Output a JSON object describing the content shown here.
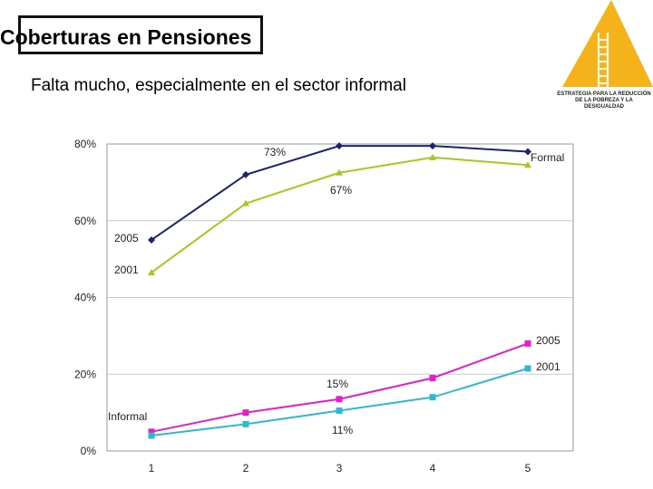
{
  "header": {
    "title": "Coberturas en Pensiones",
    "subtitle": "Falta mucho, especialmente en el sector informal"
  },
  "logo": {
    "icon": "ladder-pyramid-icon",
    "line1": "ESTRATEGIA PARA LA REDUCCIÓN",
    "line2": "DE LA POBREZA Y LA DESIGUALDAD",
    "color": "#f4b21b"
  },
  "chart_data": {
    "type": "line",
    "categories": [
      "1",
      "2",
      "3",
      "4",
      "5"
    ],
    "ylim": [
      0,
      80
    ],
    "yticks": [
      "0%",
      "20%",
      "40%",
      "60%",
      "80%"
    ],
    "grid": true,
    "series": [
      {
        "group": "Formal",
        "name": "2005",
        "marker": "diamond",
        "color": "#1a2472",
        "values": [
          55,
          72,
          79.5,
          79.5,
          78
        ]
      },
      {
        "group": "Formal",
        "name": "2001",
        "marker": "triangle",
        "color": "#a6c81e",
        "values": [
          46.5,
          64.5,
          72.5,
          76.5,
          74.5
        ]
      },
      {
        "group": "Informal",
        "name": "2005",
        "marker": "square",
        "color": "#e020c8",
        "values": [
          5,
          10,
          13.5,
          19,
          28
        ]
      },
      {
        "group": "Informal",
        "name": "2001",
        "marker": "square",
        "color": "#30b8d0",
        "values": [
          4,
          7,
          10.5,
          14,
          21.5
        ]
      }
    ],
    "annotations": {
      "formal_label": "Formal",
      "informal_label": "Informal",
      "formal_2005_label": "2005",
      "formal_2001_label": "2001",
      "informal_2005_label": "2005",
      "informal_2001_label": "2001",
      "peak_73": "73%",
      "peak_67": "67%",
      "mid_15": "15%",
      "mid_11": "11%"
    }
  }
}
